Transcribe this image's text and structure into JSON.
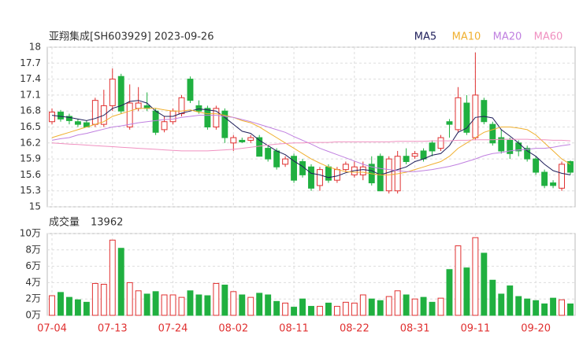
{
  "chart_data": {
    "type": "candlestick",
    "title": "亚翔集成[SH603929] 2023-09-26",
    "volume_title": "成交量",
    "up_color": "#e03030",
    "down_color": "#20b040",
    "categories": [
      "07-04",
      null,
      null,
      null,
      null,
      null,
      null,
      "07-13",
      null,
      null,
      null,
      null,
      null,
      null,
      "07-24",
      null,
      null,
      null,
      null,
      null,
      null,
      "08-02",
      null,
      null,
      null,
      null,
      null,
      null,
      "08-11",
      null,
      null,
      null,
      null,
      null,
      null,
      "08-22",
      null,
      null,
      null,
      null,
      null,
      null,
      "08-31",
      null,
      null,
      null,
      null,
      null,
      null,
      "09-11",
      null,
      null,
      null,
      null,
      null,
      null,
      "09-20",
      null,
      null,
      null,
      null
    ],
    "ohlc": [
      [
        16.6,
        16.85,
        16.55,
        16.78
      ],
      [
        16.78,
        16.82,
        16.6,
        16.65
      ],
      [
        16.7,
        16.75,
        16.55,
        16.62
      ],
      [
        16.6,
        16.65,
        16.5,
        16.55
      ],
      [
        16.58,
        16.62,
        16.5,
        16.5
      ],
      [
        16.55,
        17.05,
        16.5,
        17.0
      ],
      [
        16.55,
        17.2,
        16.5,
        16.9
      ],
      [
        16.9,
        17.6,
        16.8,
        17.4
      ],
      [
        17.45,
        17.5,
        16.75,
        16.8
      ],
      [
        16.5,
        17.3,
        16.45,
        16.95
      ],
      [
        16.85,
        17.25,
        16.8,
        16.95
      ],
      [
        16.9,
        17.15,
        16.8,
        16.85
      ],
      [
        16.8,
        16.85,
        16.35,
        16.4
      ],
      [
        16.45,
        16.7,
        16.4,
        16.6
      ],
      [
        16.6,
        16.85,
        16.55,
        16.8
      ],
      [
        16.75,
        17.1,
        16.7,
        17.05
      ],
      [
        17.4,
        17.45,
        16.95,
        17.0
      ],
      [
        16.9,
        17.0,
        16.75,
        16.8
      ],
      [
        16.85,
        16.9,
        16.45,
        16.5
      ],
      [
        16.5,
        16.9,
        16.45,
        16.85
      ],
      [
        16.8,
        16.85,
        16.2,
        16.3
      ],
      [
        16.2,
        16.35,
        16.05,
        16.3
      ],
      [
        16.25,
        16.3,
        16.2,
        16.22
      ],
      [
        16.25,
        16.35,
        16.2,
        16.3
      ],
      [
        16.3,
        16.35,
        15.95,
        15.95
      ],
      [
        16.1,
        16.15,
        15.85,
        15.9
      ],
      [
        16.05,
        16.1,
        15.7,
        15.75
      ],
      [
        15.8,
        15.95,
        15.75,
        15.9
      ],
      [
        15.95,
        16.0,
        15.45,
        15.5
      ],
      [
        15.85,
        15.9,
        15.55,
        15.6
      ],
      [
        15.75,
        15.8,
        15.3,
        15.35
      ],
      [
        15.4,
        15.75,
        15.3,
        15.7
      ],
      [
        15.75,
        15.8,
        15.45,
        15.5
      ],
      [
        15.5,
        15.75,
        15.45,
        15.7
      ],
      [
        15.7,
        15.85,
        15.65,
        15.8
      ],
      [
        15.6,
        15.85,
        15.55,
        15.75
      ],
      [
        15.6,
        15.85,
        15.5,
        15.75
      ],
      [
        15.8,
        15.95,
        15.4,
        15.45
      ],
      [
        15.95,
        16.0,
        15.3,
        15.3
      ],
      [
        15.3,
        15.95,
        15.25,
        15.9
      ],
      [
        15.3,
        16.05,
        15.25,
        15.95
      ],
      [
        15.95,
        16.1,
        15.8,
        15.85
      ],
      [
        15.95,
        16.05,
        15.9,
        16.0
      ],
      [
        16.05,
        16.1,
        15.85,
        15.9
      ],
      [
        16.2,
        16.25,
        15.95,
        16.05
      ],
      [
        16.1,
        16.35,
        16.05,
        16.3
      ],
      [
        16.6,
        16.65,
        16.3,
        16.55
      ],
      [
        16.45,
        17.25,
        16.4,
        17.05
      ],
      [
        16.95,
        17.1,
        16.35,
        16.4
      ],
      [
        16.3,
        17.9,
        16.25,
        17.1
      ],
      [
        17.0,
        17.05,
        16.55,
        16.6
      ],
      [
        16.55,
        16.6,
        16.15,
        16.2
      ],
      [
        16.3,
        16.45,
        16.0,
        16.05
      ],
      [
        16.25,
        16.3,
        15.9,
        16.0
      ],
      [
        16.2,
        16.25,
        15.95,
        16.05
      ],
      [
        16.1,
        16.15,
        15.85,
        15.9
      ],
      [
        15.9,
        15.95,
        15.6,
        15.65
      ],
      [
        15.65,
        15.7,
        15.35,
        15.4
      ],
      [
        15.45,
        15.5,
        15.35,
        15.4
      ],
      [
        15.35,
        15.85,
        15.3,
        15.8
      ],
      [
        15.85,
        15.87,
        15.6,
        15.65
      ]
    ],
    "volumes": [
      24000,
      28000,
      22000,
      19000,
      16000,
      39000,
      38000,
      92000,
      82000,
      40000,
      30000,
      26000,
      29000,
      25000,
      25000,
      22000,
      30000,
      25000,
      24000,
      39000,
      37000,
      29000,
      25000,
      22000,
      27000,
      25000,
      17000,
      15000,
      10000,
      20000,
      11000,
      11000,
      15000,
      11000,
      16000,
      15000,
      25000,
      20000,
      18000,
      23000,
      30000,
      25000,
      20000,
      22000,
      16000,
      21000,
      56000,
      85000,
      58000,
      95000,
      76000,
      43000,
      26000,
      36000,
      23000,
      20000,
      18000,
      14000,
      21000,
      19000,
      13962
    ],
    "series": [
      {
        "name": "MA5",
        "color": "#1e1e5a",
        "values": [
          16.72,
          16.7,
          16.68,
          16.65,
          16.62,
          16.66,
          16.72,
          16.85,
          16.9,
          16.98,
          17.0,
          16.95,
          16.8,
          16.7,
          16.7,
          16.76,
          16.8,
          16.84,
          16.82,
          16.8,
          16.68,
          16.55,
          16.42,
          16.38,
          16.25,
          16.15,
          16.05,
          15.98,
          15.86,
          15.76,
          15.63,
          15.6,
          15.55,
          15.58,
          15.64,
          15.68,
          15.7,
          15.68,
          15.6,
          15.65,
          15.7,
          15.75,
          15.85,
          15.9,
          15.97,
          16.0,
          16.15,
          16.4,
          16.48,
          16.68,
          16.7,
          16.67,
          16.45,
          16.33,
          16.2,
          16.05,
          15.95,
          15.8,
          15.68,
          15.63,
          15.6
        ]
      },
      {
        "name": "MA10",
        "color": "#f0b030",
        "values": [
          16.3,
          16.35,
          16.4,
          16.45,
          16.5,
          16.55,
          16.6,
          16.7,
          16.75,
          16.8,
          16.85,
          16.85,
          16.85,
          16.82,
          16.8,
          16.8,
          16.82,
          16.78,
          16.75,
          16.75,
          16.72,
          16.68,
          16.62,
          16.58,
          16.5,
          16.4,
          16.3,
          16.2,
          16.1,
          16.0,
          15.9,
          15.82,
          15.75,
          15.7,
          15.66,
          15.65,
          15.65,
          15.62,
          15.6,
          15.6,
          15.62,
          15.65,
          15.7,
          15.75,
          15.8,
          15.85,
          15.95,
          16.1,
          16.2,
          16.3,
          16.4,
          16.45,
          16.5,
          16.5,
          16.48,
          16.45,
          16.35,
          16.2,
          16.05,
          15.9,
          15.8
        ]
      },
      {
        "name": "MA20",
        "color": "#c080e0",
        "values": [
          16.25,
          16.28,
          16.3,
          16.35,
          16.38,
          16.42,
          16.46,
          16.5,
          16.52,
          16.55,
          16.58,
          16.6,
          16.62,
          16.64,
          16.65,
          16.68,
          16.7,
          16.72,
          16.72,
          16.72,
          16.7,
          16.68,
          16.64,
          16.6,
          16.55,
          16.5,
          16.45,
          16.4,
          16.32,
          16.25,
          16.18,
          16.1,
          16.04,
          15.98,
          15.92,
          15.86,
          15.8,
          15.75,
          15.72,
          15.7,
          15.68,
          15.66,
          15.66,
          15.68,
          15.7,
          15.73,
          15.76,
          15.8,
          15.85,
          15.9,
          15.96,
          16.0,
          16.02,
          16.05,
          16.07,
          16.08,
          16.1,
          16.1,
          16.12,
          16.15,
          16.17
        ]
      },
      {
        "name": "MA60",
        "color": "#f090c0",
        "values": [
          16.2,
          16.19,
          16.18,
          16.17,
          16.16,
          16.15,
          16.14,
          16.13,
          16.12,
          16.11,
          16.1,
          16.09,
          16.08,
          16.07,
          16.06,
          16.05,
          16.05,
          16.05,
          16.05,
          16.06,
          16.07,
          16.08,
          16.1,
          16.12,
          16.14,
          16.16,
          16.18,
          16.19,
          16.2,
          16.2,
          16.21,
          16.21,
          16.21,
          16.22,
          16.22,
          16.22,
          16.22,
          16.22,
          16.22,
          16.22,
          16.23,
          16.23,
          16.23,
          16.23,
          16.24,
          16.24,
          16.24,
          16.25,
          16.25,
          16.26,
          16.26,
          16.26,
          16.27,
          16.27,
          16.27,
          16.27,
          16.26,
          16.26,
          16.25,
          16.25,
          16.24
        ]
      }
    ],
    "ylim": [
      15,
      18
    ],
    "yticks": [
      18,
      17.7,
      17.4,
      17.1,
      16.8,
      16.5,
      16.2,
      15.9,
      15.6,
      15.3,
      15
    ],
    "volume_ylim": [
      0,
      100000
    ],
    "volume_yticks": [
      {
        "value": 100000,
        "label": "10万"
      },
      {
        "value": 80000,
        "label": "8万"
      },
      {
        "value": 60000,
        "label": "6万"
      },
      {
        "value": 40000,
        "label": "4万"
      },
      {
        "value": 20000,
        "label": "2万"
      },
      {
        "value": 0,
        "label": "0万"
      }
    ],
    "grid": true
  }
}
